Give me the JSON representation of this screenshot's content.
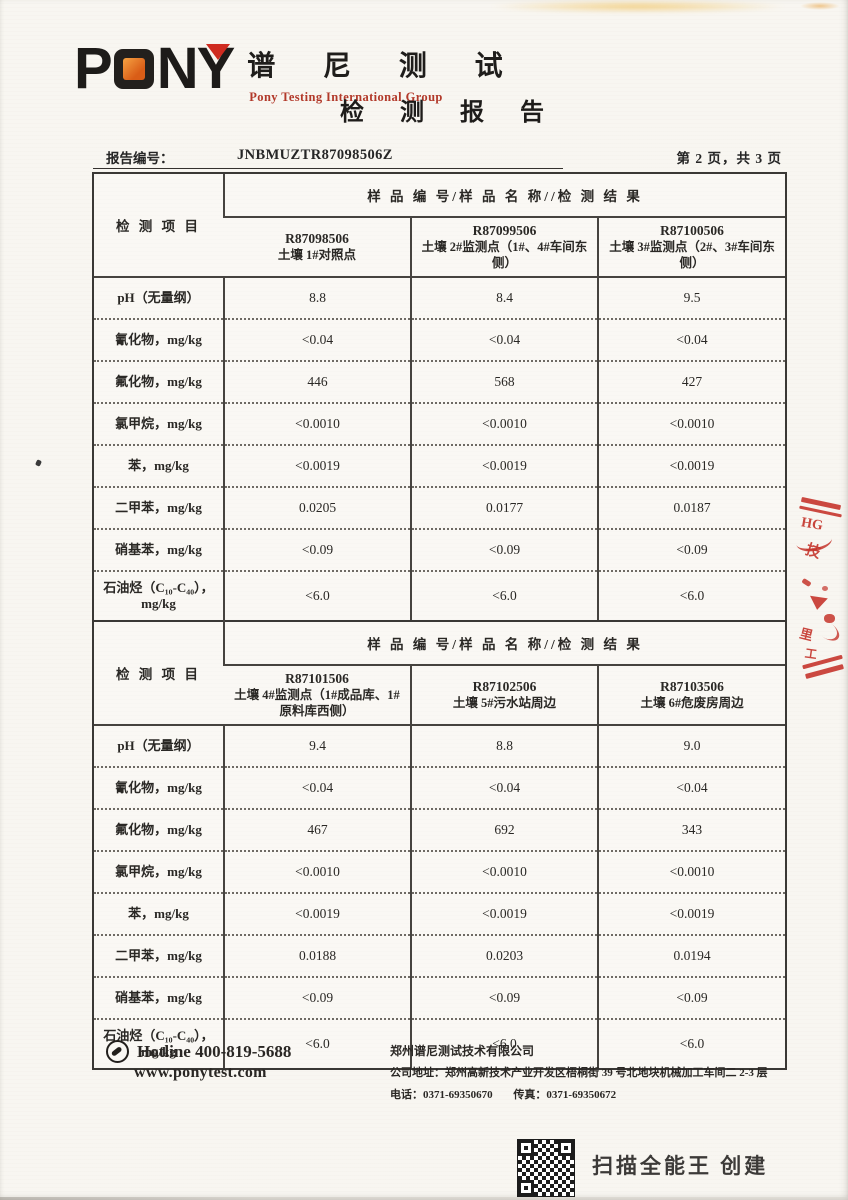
{
  "logo": {
    "brand_p": "P",
    "brand_n": "N",
    "brand_y": "Y",
    "brand_cn": "谱 尼 测 试",
    "brand_en": "Pony Testing International Group",
    "orange": "#e0661c",
    "red": "#c5352c"
  },
  "title": "检 测 报 告",
  "report_meta": {
    "label": "报告编号：",
    "number": "JNBMUZTR87098506Z",
    "page_info": "第 2 页，共 3 页"
  },
  "tables": [
    {
      "corner_label": "检 测 项 目",
      "group_header": "样 品 编 号/样 品 名 称//检 测 结 果",
      "columns": [
        {
          "code": "R87098506",
          "name": "土壤 1#对照点"
        },
        {
          "code": "R87099506",
          "name": "土壤 2#监测点（1#、4#车间东侧）"
        },
        {
          "code": "R87100506",
          "name": "土壤 3#监测点（2#、3#车间东侧）"
        }
      ],
      "rows": [
        {
          "item": "pH（无量纲）",
          "values": [
            "8.8",
            "8.4",
            "9.5"
          ]
        },
        {
          "item": "氰化物，mg/kg",
          "values": [
            "<0.04",
            "<0.04",
            "<0.04"
          ]
        },
        {
          "item": "氟化物，mg/kg",
          "values": [
            "446",
            "568",
            "427"
          ]
        },
        {
          "item": "氯甲烷，mg/kg",
          "values": [
            "<0.0010",
            "<0.0010",
            "<0.0010"
          ]
        },
        {
          "item": "苯，mg/kg",
          "values": [
            "<0.0019",
            "<0.0019",
            "<0.0019"
          ]
        },
        {
          "item": "二甲苯，mg/kg",
          "values": [
            "0.0205",
            "0.0177",
            "0.0187"
          ]
        },
        {
          "item": "硝基苯，mg/kg",
          "values": [
            "<0.09",
            "<0.09",
            "<0.09"
          ]
        },
        {
          "item": "石油烃（C₁₀-C₄₀），mg/kg",
          "values": [
            "<6.0",
            "<6.0",
            "<6.0"
          ]
        }
      ]
    },
    {
      "corner_label": "检 测 项 目",
      "group_header": "样 品 编 号/样 品 名 称//检 测 结 果",
      "columns": [
        {
          "code": "R87101506",
          "name": "土壤 4#监测点（1#成品库、1#原料库西侧）"
        },
        {
          "code": "R87102506",
          "name": "土壤 5#污水站周边"
        },
        {
          "code": "R87103506",
          "name": "土壤 6#危废房周边"
        }
      ],
      "rows": [
        {
          "item": "pH（无量纲）",
          "values": [
            "9.4",
            "8.8",
            "9.0"
          ]
        },
        {
          "item": "氰化物，mg/kg",
          "values": [
            "<0.04",
            "<0.04",
            "<0.04"
          ]
        },
        {
          "item": "氟化物，mg/kg",
          "values": [
            "467",
            "692",
            "343"
          ]
        },
        {
          "item": "氯甲烷，mg/kg",
          "values": [
            "<0.0010",
            "<0.0010",
            "<0.0010"
          ]
        },
        {
          "item": "苯，mg/kg",
          "values": [
            "<0.0019",
            "<0.0019",
            "<0.0019"
          ]
        },
        {
          "item": "二甲苯，mg/kg",
          "values": [
            "0.0188",
            "0.0203",
            "0.0194"
          ]
        },
        {
          "item": "硝基苯，mg/kg",
          "values": [
            "<0.09",
            "<0.09",
            "<0.09"
          ]
        },
        {
          "item": "石油烃（C₁₀-C₄₀），mg/kg",
          "values": [
            "<6.0",
            "<6.0",
            "<6.0"
          ]
        }
      ]
    }
  ],
  "stamp": {
    "color": "#c5352c",
    "fragments": [
      "HG",
      "技",
      "里",
      "工"
    ]
  },
  "footer": {
    "hotline": "Hotline 400-819-5688",
    "website": "www.ponytest.com",
    "company": "郑州谱尼测试技术有限公司",
    "address": "公司地址：郑州高新技术产业开发区梧桐街 39 号北地块机械加工车间二 2-3 层",
    "tel": "电话：0371-69350670",
    "fax": "传真：0371-69350672"
  },
  "scanner": {
    "note": "扫描全能王 创建"
  }
}
